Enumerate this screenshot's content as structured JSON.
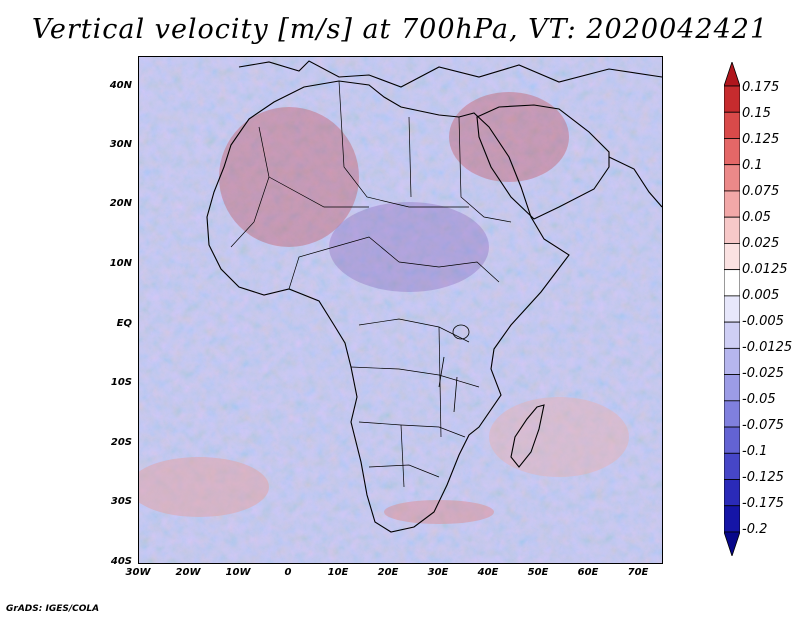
{
  "title": "Vertical velocity [m/s] at 700hPa, VT: 2020042421",
  "axes": {
    "y_ticks": [
      "40N",
      "30N",
      "20N",
      "10N",
      "EQ",
      "10S",
      "20S",
      "30S",
      "40S"
    ],
    "x_ticks": [
      "30W",
      "20W",
      "10W",
      "0",
      "10E",
      "20E",
      "30E",
      "40E",
      "50E",
      "60E",
      "70E"
    ]
  },
  "colorbar": {
    "labels": [
      "0.175",
      "0.15",
      "0.125",
      "0.1",
      "0.075",
      "0.05",
      "0.025",
      "0.0125",
      "0.005",
      "-0.005",
      "-0.0125",
      "-0.025",
      "-0.05",
      "-0.075",
      "-0.1",
      "-0.125",
      "-0.175",
      "-0.2"
    ],
    "colors": [
      "#b0161d",
      "#c62b2e",
      "#d94a4a",
      "#e46767",
      "#ec8989",
      "#f2a8a8",
      "#f7c8c8",
      "#fbe2e2",
      "#ffffff",
      "#e7e7fb",
      "#cfcff5",
      "#b6b6ee",
      "#9c9ce6",
      "#8080de",
      "#6363d3",
      "#4646c7",
      "#2a2ab8",
      "#1515a6",
      "#07078a"
    ]
  },
  "credit": "GrADS: IGES/COLA"
}
